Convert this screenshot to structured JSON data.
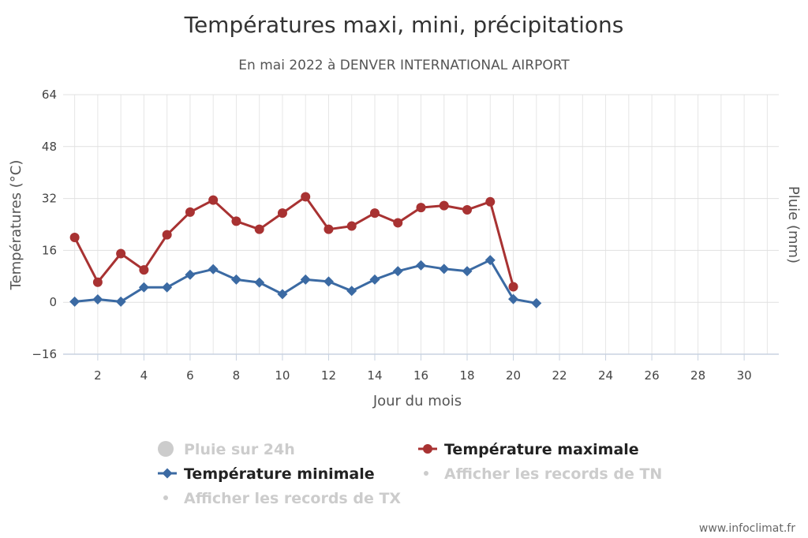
{
  "chart_data": {
    "type": "line",
    "title": "Températures maxi, mini, précipitations",
    "subtitle": "En mai 2022 à DENVER INTERNATIONAL AIRPORT",
    "xlabel": "Jour du mois",
    "ylabel": "Températures (°C)",
    "y2label": "Pluie (mm)",
    "xlim": [
      0.5,
      31.5
    ],
    "ylim": [
      -16,
      64
    ],
    "x_ticks": [
      2,
      4,
      6,
      8,
      10,
      12,
      14,
      16,
      18,
      20,
      22,
      24,
      26,
      28,
      30
    ],
    "y_ticks": [
      -16,
      0,
      16,
      32,
      48,
      64
    ],
    "grid": true,
    "legend_position": "bottom",
    "series": [
      {
        "name": "Température maximale",
        "color": "#a83232",
        "marker": "circle",
        "x": [
          1,
          2,
          3,
          4,
          5,
          6,
          7,
          8,
          9,
          10,
          11,
          12,
          13,
          14,
          15,
          16,
          17,
          18,
          19,
          20
        ],
        "values": [
          20,
          6.2,
          15,
          10,
          20.8,
          27.8,
          31.5,
          25,
          22.5,
          27.5,
          32.5,
          22.5,
          23.5,
          27.5,
          24.5,
          29.2,
          29.8,
          28.5,
          31,
          4.8
        ]
      },
      {
        "name": "Température minimale",
        "color": "#3b6aa3",
        "marker": "diamond",
        "x": [
          1,
          2,
          3,
          4,
          5,
          6,
          7,
          8,
          9,
          10,
          11,
          12,
          13,
          14,
          15,
          16,
          17,
          18,
          19,
          20,
          21
        ],
        "values": [
          0.2,
          0.9,
          0.2,
          4.6,
          4.6,
          8.5,
          10.2,
          7,
          6.1,
          2.5,
          7,
          6.4,
          3.5,
          7,
          9.6,
          11.4,
          10.3,
          9.6,
          13,
          1,
          -0.3
        ]
      }
    ],
    "legend": [
      {
        "name": "Pluie sur 24h",
        "color": "#cccccc",
        "marker": "circle",
        "visible": false
      },
      {
        "name": "Température maximale",
        "color": "#a83232",
        "marker": "circle-line",
        "visible": true
      },
      {
        "name": "Température minimale",
        "color": "#3b6aa3",
        "marker": "diamond-line",
        "visible": true
      },
      {
        "name": "Afficher les records de TN",
        "color": "#cccccc",
        "marker": "dot",
        "visible": false
      },
      {
        "name": "Afficher les records de TX",
        "color": "#cccccc",
        "marker": "dot",
        "visible": false
      }
    ]
  },
  "credit": "www.infoclimat.fr"
}
